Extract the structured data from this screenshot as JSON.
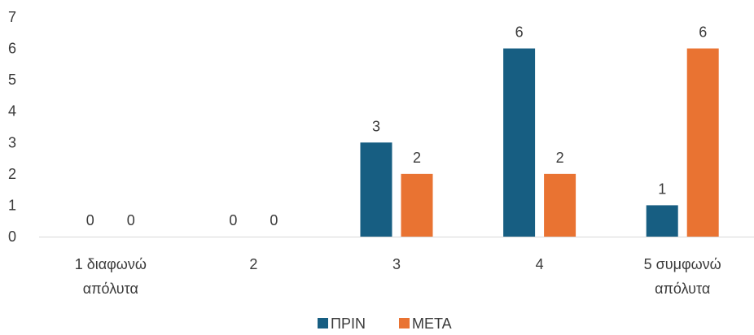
{
  "chart_data": {
    "type": "bar",
    "categories": [
      [
        "1 διαφωνώ",
        "απόλυτα"
      ],
      [
        "2"
      ],
      [
        "3"
      ],
      [
        "4"
      ],
      [
        "5 συμφωνώ",
        "απόλυτα"
      ]
    ],
    "series": [
      {
        "name": "ΠΡΙΝ",
        "color": "#175e82",
        "values": [
          0,
          0,
          3,
          6,
          1
        ]
      },
      {
        "name": "ΜΕΤΑ",
        "color": "#e97332",
        "values": [
          0,
          0,
          2,
          2,
          6
        ]
      }
    ],
    "yticks": [
      0,
      1,
      2,
      3,
      4,
      5,
      6,
      7
    ],
    "ylim": [
      0,
      7
    ],
    "grid": false,
    "legend": "bottom-center",
    "data_labels": true,
    "colors": {
      "axis_line": "#d9d9d9",
      "text": "#3a3a3a"
    }
  }
}
